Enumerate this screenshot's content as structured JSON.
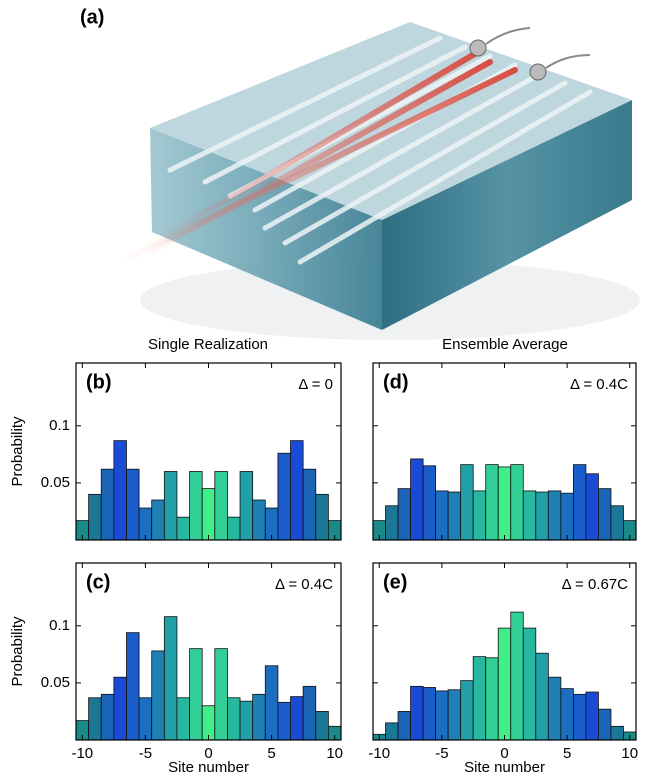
{
  "panel_a": {
    "label": "(a)"
  },
  "columns": [
    "Single Realization",
    "Ensemble Average"
  ],
  "chart_data": [
    {
      "type": "bar",
      "title": "(b)",
      "annotation": "Δ = 0",
      "ylabel": "Probability",
      "x": [
        -10,
        -9,
        -8,
        -7,
        -6,
        -5,
        -4,
        -3,
        -2,
        -1,
        0,
        1,
        2,
        3,
        4,
        5,
        6,
        7,
        8,
        9,
        10
      ],
      "values": [
        0.017,
        0.04,
        0.062,
        0.087,
        0.062,
        0.028,
        0.035,
        0.06,
        0.02,
        0.06,
        0.045,
        0.06,
        0.02,
        0.06,
        0.035,
        0.028,
        0.076,
        0.087,
        0.062,
        0.04,
        0.017
      ],
      "colors": [
        "#1a8a88",
        "#1a7896",
        "#1c64b5",
        "#1a4bd6",
        "#1a5cc9",
        "#1b6ec0",
        "#1e80b4",
        "#22a0a8",
        "#28b8a0",
        "#32cf96",
        "#3ff08a",
        "#32cf96",
        "#28b8a0",
        "#22a0a8",
        "#1e80b4",
        "#1b6ec0",
        "#1a5cc9",
        "#1a4bd6",
        "#1c64b5",
        "#1a7896",
        "#1a8a88"
      ],
      "xlim": [
        -10.5,
        10.5
      ],
      "xticks": [
        -10,
        -5,
        0,
        5,
        10
      ],
      "ylim": [
        0,
        0.155
      ],
      "yticks": [
        0.05,
        0.1
      ],
      "show_xtick_labels": false,
      "show_ytick_labels": true
    },
    {
      "type": "bar",
      "title": "(c)",
      "annotation": "Δ = 0.4C",
      "ylabel": "Probability",
      "xlabel": "Site number",
      "x": [
        -10,
        -9,
        -8,
        -7,
        -6,
        -5,
        -4,
        -3,
        -2,
        -1,
        0,
        1,
        2,
        3,
        4,
        5,
        6,
        7,
        8,
        9,
        10
      ],
      "values": [
        0.017,
        0.037,
        0.04,
        0.055,
        0.094,
        0.037,
        0.078,
        0.108,
        0.037,
        0.08,
        0.03,
        0.08,
        0.037,
        0.034,
        0.04,
        0.065,
        0.033,
        0.038,
        0.047,
        0.025,
        0.012
      ],
      "colors": [
        "#1a8a88",
        "#1a7896",
        "#1c64b5",
        "#1a4bd6",
        "#1a5cc9",
        "#1b6ec0",
        "#1e80b4",
        "#22a0a8",
        "#28b8a0",
        "#32cf96",
        "#3ff08a",
        "#32cf96",
        "#28b8a0",
        "#22a0a8",
        "#1e80b4",
        "#1b6ec0",
        "#1a5cc9",
        "#1a4bd6",
        "#1c64b5",
        "#1a7896",
        "#1a8a88"
      ],
      "xlim": [
        -10.5,
        10.5
      ],
      "xticks": [
        -10,
        -5,
        0,
        5,
        10
      ],
      "ylim": [
        0,
        0.155
      ],
      "yticks": [
        0.05,
        0.1
      ],
      "show_xtick_labels": true,
      "show_ytick_labels": true
    },
    {
      "type": "bar",
      "title": "(d)",
      "annotation": "Δ = 0.4C",
      "x": [
        -10,
        -9,
        -8,
        -7,
        -6,
        -5,
        -4,
        -3,
        -2,
        -1,
        0,
        1,
        2,
        3,
        4,
        5,
        6,
        7,
        8,
        9,
        10
      ],
      "values": [
        0.017,
        0.03,
        0.045,
        0.071,
        0.065,
        0.043,
        0.042,
        0.066,
        0.043,
        0.066,
        0.064,
        0.066,
        0.043,
        0.042,
        0.043,
        0.041,
        0.066,
        0.058,
        0.045,
        0.03,
        0.017
      ],
      "colors": [
        "#1a8a88",
        "#1a7896",
        "#1c64b5",
        "#1a4bd6",
        "#1a5cc9",
        "#1b6ec0",
        "#1e80b4",
        "#22a0a8",
        "#28b8a0",
        "#32cf96",
        "#3ff08a",
        "#32cf96",
        "#28b8a0",
        "#22a0a8",
        "#1e80b4",
        "#1b6ec0",
        "#1a5cc9",
        "#1a4bd6",
        "#1c64b5",
        "#1a7896",
        "#1a8a88"
      ],
      "xlim": [
        -10.5,
        10.5
      ],
      "xticks": [
        -10,
        -5,
        0,
        5,
        10
      ],
      "ylim": [
        0,
        0.155
      ],
      "yticks": [
        0.05,
        0.1
      ],
      "show_xtick_labels": false,
      "show_ytick_labels": false
    },
    {
      "type": "bar",
      "title": "(e)",
      "annotation": "Δ = 0.67C",
      "xlabel": "Site number",
      "x": [
        -10,
        -9,
        -8,
        -7,
        -6,
        -5,
        -4,
        -3,
        -2,
        -1,
        0,
        1,
        2,
        3,
        4,
        5,
        6,
        7,
        8,
        9,
        10
      ],
      "values": [
        0.005,
        0.015,
        0.025,
        0.047,
        0.046,
        0.043,
        0.044,
        0.052,
        0.073,
        0.072,
        0.098,
        0.112,
        0.098,
        0.076,
        0.055,
        0.045,
        0.04,
        0.042,
        0.027,
        0.012,
        0.007
      ],
      "colors": [
        "#1a8a88",
        "#1a7896",
        "#1c64b5",
        "#1a4bd6",
        "#1a5cc9",
        "#1b6ec0",
        "#1e80b4",
        "#22a0a8",
        "#28b8a0",
        "#32cf96",
        "#3ff08a",
        "#32cf96",
        "#28b8a0",
        "#22a0a8",
        "#1e80b4",
        "#1b6ec0",
        "#1a5cc9",
        "#1a4bd6",
        "#1c64b5",
        "#1a7896",
        "#1a8a88"
      ],
      "xlim": [
        -10.5,
        10.5
      ],
      "xticks": [
        -10,
        -5,
        0,
        5,
        10
      ],
      "ylim": [
        0,
        0.155
      ],
      "yticks": [
        0.05,
        0.1
      ],
      "show_xtick_labels": true,
      "show_ytick_labels": false
    }
  ]
}
